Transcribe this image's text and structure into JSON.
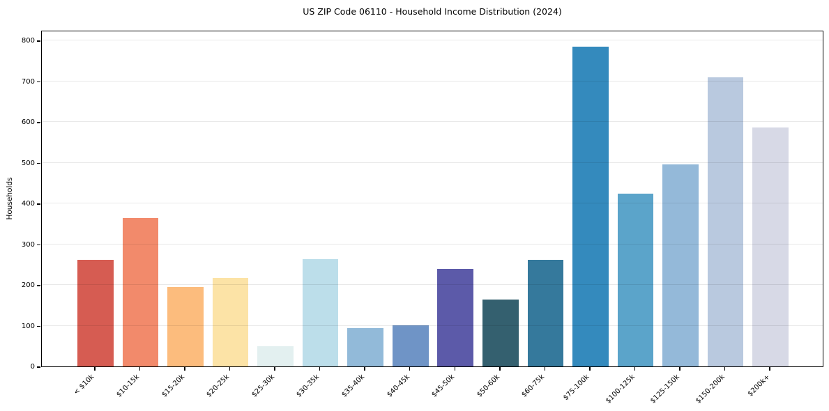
{
  "title": "US ZIP Code 06110 - Household Income Distribution (2024)",
  "chart_data": {
    "type": "bar",
    "title": "US ZIP Code 06110 - Household Income Distribution (2024)",
    "xlabel": "",
    "ylabel": "Households",
    "categories": [
      "< $10k",
      "$10-15k",
      "$15-20k",
      "$20-25k",
      "$25-30k",
      "$30-35k",
      "$35-40k",
      "$40-45k",
      "$45-50k",
      "$50-60k",
      "$60-75k",
      "$75-100k",
      "$100-125k",
      "$125-150k",
      "$150-200k",
      "$200k+"
    ],
    "values": [
      262,
      365,
      195,
      217,
      50,
      264,
      94,
      101,
      239,
      165,
      262,
      785,
      424,
      496,
      709,
      587
    ],
    "bar_colors": [
      "#d65c52",
      "#f28a6b",
      "#fcbc7d",
      "#fce3a6",
      "#e3f0f0",
      "#bcdeea",
      "#92bad9",
      "#6f94c6",
      "#5c5aa9",
      "#34606f",
      "#35799c",
      "#348abd",
      "#5ba4ca",
      "#94b9d9",
      "#b9c9df",
      "#d7d9e6"
    ],
    "yticks": [
      0,
      100,
      200,
      300,
      400,
      500,
      600,
      700,
      800
    ],
    "ylim": [
      0,
      826
    ],
    "grid": "horizontal-only",
    "legend": "none",
    "background_color": "#ffffff",
    "spine_color": "#000000",
    "gridline_color": "#ebebeb",
    "xtick_rotation_deg": 45
  }
}
